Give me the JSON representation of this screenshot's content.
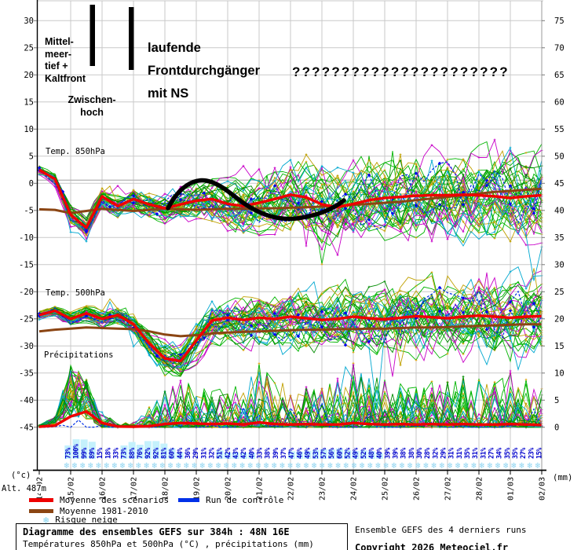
{
  "annotations": {
    "mittelmeertief": "Mittel-\nmeer-\ntief +\nKaltfront",
    "zwischenhoch": "Zwischen-\nhoch",
    "frontdurchgaenger": "laufende\nFrontdurchgänger\nmit NS",
    "question_marks": "??????????????????????"
  },
  "panel_labels": {
    "t850": "Temp. 850hPa",
    "t500": "Temp. 500hPa",
    "precip": "Précipitations"
  },
  "axis": {
    "left_unit": "(°c)",
    "right_unit": "(mm)",
    "altitude": "Alt. 487m",
    "left_ticks": [
      30,
      25,
      20,
      15,
      10,
      5,
      0,
      -5,
      -10,
      -15,
      -20,
      -25,
      -30,
      -35,
      -40,
      -45
    ],
    "right_ticks": [
      75,
      70,
      65,
      60,
      55,
      50,
      45,
      40,
      35,
      30,
      25,
      20,
      15,
      10,
      5,
      0
    ]
  },
  "legend": {
    "mean_label": "Moyenne des scénarios",
    "clim_label": "Moyenne 1981-2010",
    "snow_label": "Risque neige",
    "control_label": "Run de contrôle",
    "mean_color": "#ee0000",
    "clim_color": "#8B4513",
    "control_color": "#0030e8",
    "snow_color": "#7fd2f0"
  },
  "footer": {
    "title": "Diagramme des ensembles GEFS sur 384h : 48N 16E",
    "subtitle": "Températures 850hPa et 500hPa (°C) , précipitations (mm)",
    "right_line1": "Ensemble GEFS des 4 derniers runs",
    "right_line2": "Copyright 2026 Meteociel.fr"
  },
  "chart_data": {
    "type": "line",
    "title": "Diagramme des ensembles GEFS sur 384h : 48N 16E",
    "x_labels": [
      "14/02",
      "15/02",
      "16/02",
      "17/02",
      "18/02",
      "19/02",
      "20/02",
      "21/02",
      "22/02",
      "23/02",
      "24/02",
      "25/02",
      "26/02",
      "27/02",
      "28/02",
      "01/03",
      "02/03"
    ],
    "ylim_temp": [
      -45,
      30
    ],
    "ylim_precip": [
      0,
      75
    ],
    "grid": true,
    "series": [
      {
        "name": "Moyenne des scénarios 850hPa",
        "color": "#ee0000",
        "axis": "temp",
        "values": [
          2.5,
          0.8,
          -5.8,
          -8.2,
          -2.4,
          -4.2,
          -2.9,
          -3.9,
          -4.6,
          -3.9,
          -3.2,
          -2.9,
          -3.8,
          -4.2,
          -3.6,
          -2.9,
          -2.1,
          -2.6,
          -3.9,
          -4.4,
          -3.8,
          -3.1,
          -2.7,
          -2.5,
          -2.3,
          -2.2,
          -2.2,
          -2.1,
          -2.2,
          -2.4,
          -2.7,
          -2.4,
          -2.2
        ]
      },
      {
        "name": "Moyenne 1981-2010 850hPa",
        "color": "#8B4513",
        "axis": "temp",
        "values": [
          -4.8,
          -4.9,
          -5.5,
          -5.1,
          -4.7,
          -4.9,
          -5.1,
          -4.9,
          -4.7,
          -4.8,
          -4.9,
          -4.8,
          -4.7,
          -4.7,
          -4.6,
          -4.6,
          -4.5,
          -4.4,
          -4.3,
          -4.2,
          -4.0,
          -3.8,
          -3.6,
          -3.4,
          -3.1,
          -2.8,
          -2.5,
          -2.2,
          -1.9,
          -1.6,
          -1.4,
          -1.2,
          -1.0
        ]
      },
      {
        "name": "Moyenne des scénarios 500hPa",
        "color": "#ee0000",
        "axis": "temp",
        "values": [
          -24.3,
          -23.5,
          -25.0,
          -24.0,
          -25.0,
          -24.3,
          -26.0,
          -29.5,
          -32.3,
          -32.8,
          -29.0,
          -25.3,
          -24.8,
          -25.2,
          -24.8,
          -25.0,
          -24.6,
          -24.9,
          -25.2,
          -25.0,
          -24.6,
          -24.9,
          -25.1,
          -24.8,
          -24.5,
          -24.7,
          -24.9,
          -24.6,
          -24.4,
          -24.6,
          -24.8,
          -24.6,
          -24.5
        ]
      },
      {
        "name": "Moyenne 1981-2010 500hPa",
        "color": "#8B4513",
        "axis": "temp",
        "values": [
          -27.3,
          -27.0,
          -26.8,
          -26.6,
          -26.7,
          -26.8,
          -26.9,
          -27.3,
          -27.9,
          -28.2,
          -28.0,
          -27.7,
          -27.5,
          -27.4,
          -27.3,
          -27.2,
          -27.1,
          -27.0,
          -27.0,
          -26.9,
          -26.9,
          -26.8,
          -26.8,
          -26.7,
          -26.6,
          -26.6,
          -26.5,
          -26.4,
          -26.3,
          -26.2,
          -26.1,
          -26.0,
          -26.0
        ]
      },
      {
        "name": "Précipitations moyenne",
        "color": "#ee0000",
        "axis": "precip",
        "values": [
          0.1,
          0.3,
          2.0,
          2.9,
          0.8,
          0.15,
          0.1,
          0.2,
          0.6,
          0.8,
          0.7,
          0.6,
          0.7,
          0.5,
          0.9,
          0.6,
          0.5,
          0.6,
          0.5,
          0.5,
          0.8,
          0.6,
          0.5,
          0.6,
          0.5,
          0.6,
          0.5,
          0.6,
          0.5,
          0.5,
          0.6,
          0.5,
          0.4
        ]
      }
    ],
    "snow_risk_pct": [
      73,
      100,
      99,
      89,
      15,
      18,
      33,
      73,
      88,
      76,
      92,
      92,
      81,
      60,
      44,
      36,
      29,
      31,
      32,
      51,
      42,
      43,
      42,
      40,
      33,
      38,
      39,
      37,
      47,
      46,
      49,
      53,
      57,
      56,
      60,
      52,
      49,
      52,
      48,
      40,
      39,
      39,
      38,
      38,
      30,
      28,
      32,
      29,
      31,
      31,
      35,
      31,
      31,
      27,
      34,
      35,
      35,
      27,
      23,
      15
    ],
    "ensemble": {
      "members_per_panel": 40,
      "member_colors": [
        [
          "#00b400",
          21
        ],
        [
          "#c800c8",
          6
        ],
        [
          "#c0a000",
          5
        ],
        [
          "#00a8d0",
          4
        ],
        [
          "#008c00",
          4
        ]
      ],
      "marker_color": "#e0a000",
      "control_color": "#0030e8",
      "spread_850": [
        0.5,
        0.7,
        1.2,
        1.3,
        1.1,
        1.2,
        1.3,
        1.5,
        1.7,
        2.0,
        2.3,
        2.6,
        2.9,
        3.1,
        3.3,
        3.5,
        3.7,
        3.8,
        4.0,
        4.1,
        4.2,
        4.3,
        4.4,
        4.5,
        4.6,
        4.7,
        4.8,
        4.9,
        5.0,
        5.0,
        5.1,
        5.1,
        5.2
      ],
      "spread_500": [
        0.5,
        0.6,
        0.9,
        1.0,
        1.0,
        1.1,
        1.3,
        1.6,
        2.0,
        2.2,
        2.4,
        2.5,
        2.7,
        2.9,
        3.1,
        3.2,
        3.4,
        3.5,
        3.7,
        3.8,
        3.9,
        4.0,
        4.1,
        4.2,
        4.3,
        4.3,
        4.4,
        4.4,
        4.5,
        4.5,
        4.6,
        4.6,
        4.7
      ],
      "precip_env": [
        0.4,
        2.0,
        12.0,
        9.0,
        2.0,
        0.4,
        0.8,
        2.5,
        5.0,
        6.0,
        5.0,
        5.0,
        6.0,
        5.0,
        8.0,
        6.0,
        5.0,
        5.0,
        5.0,
        6.0,
        9.0,
        7.0,
        6.0,
        6.0,
        5.0,
        6.0,
        6.0,
        7.0,
        6.0,
        6.0,
        7.0,
        6.0,
        5.0
      ]
    }
  }
}
